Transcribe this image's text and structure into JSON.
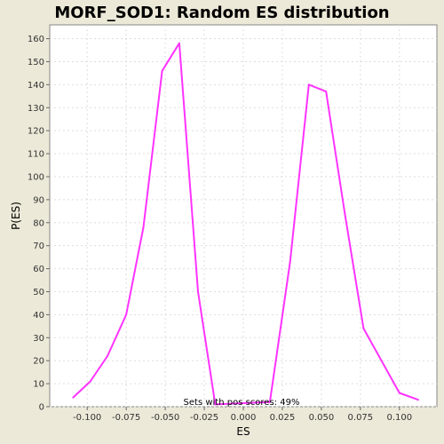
{
  "chart_data": {
    "type": "line",
    "title": "MORF_SOD1: Random ES distribution",
    "xlabel": "ES",
    "ylabel": "P(ES)",
    "xlim": [
      -0.124,
      0.124
    ],
    "ylim": [
      0,
      166
    ],
    "x_ticks": [
      -0.1,
      -0.075,
      -0.05,
      -0.025,
      0.0,
      0.025,
      0.05,
      0.075,
      0.1
    ],
    "x_tick_labels": [
      "-0.100",
      "-0.075",
      "-0.050",
      "-0.025",
      "0.000",
      "0.025",
      "0.050",
      "0.075",
      "0.100"
    ],
    "y_ticks": [
      0,
      10,
      20,
      30,
      40,
      50,
      60,
      70,
      80,
      90,
      100,
      110,
      120,
      130,
      140,
      150,
      160
    ],
    "y_tick_labels": [
      "0",
      "10",
      "20",
      "30",
      "40",
      "50",
      "60",
      "70",
      "80",
      "90",
      "100",
      "110",
      "120",
      "130",
      "140",
      "150",
      "160"
    ],
    "grid": true,
    "legend": "none",
    "annotation": "Sets with pos scores: 49%",
    "series": [
      {
        "color": "#ff33ff",
        "x": [
          -0.109,
          -0.098,
          -0.087,
          -0.075,
          -0.064,
          -0.052,
          -0.041,
          -0.029,
          -0.018,
          0.017,
          0.03,
          0.042,
          0.053,
          0.065,
          0.077,
          0.1,
          0.112
        ],
        "y": [
          4,
          11,
          22,
          40,
          78,
          146,
          158,
          50,
          1,
          2,
          63,
          140,
          137,
          84,
          34,
          6,
          3
        ]
      }
    ]
  }
}
